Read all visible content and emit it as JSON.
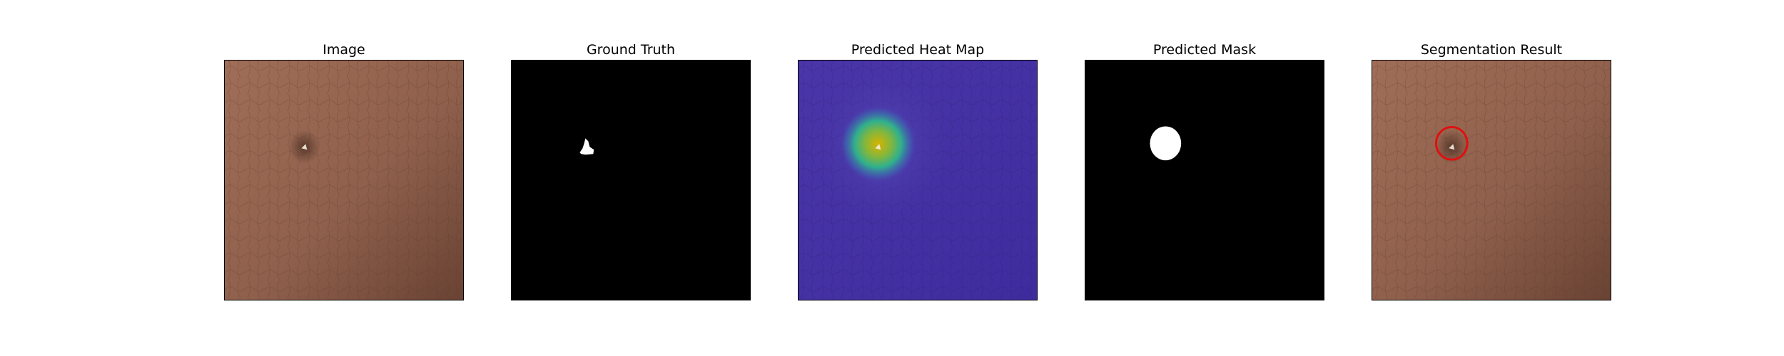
{
  "panels": [
    {
      "id": "image",
      "title": "Image"
    },
    {
      "id": "ground-truth",
      "title": "Ground Truth"
    },
    {
      "id": "heatmap",
      "title": "Predicted Heat Map"
    },
    {
      "id": "mask",
      "title": "Predicted Mask"
    },
    {
      "id": "segmentation",
      "title": "Segmentation Result"
    }
  ],
  "colors": {
    "leather_light": "#9a6a54",
    "leather_dark": "#6a4334",
    "mask_black": "#000000",
    "mask_white": "#ffffff",
    "heat_base": "#4630a8",
    "heat_hot": "#d2b400",
    "heat_mid": "#3dbf8a",
    "circle_red": "#e01010"
  }
}
